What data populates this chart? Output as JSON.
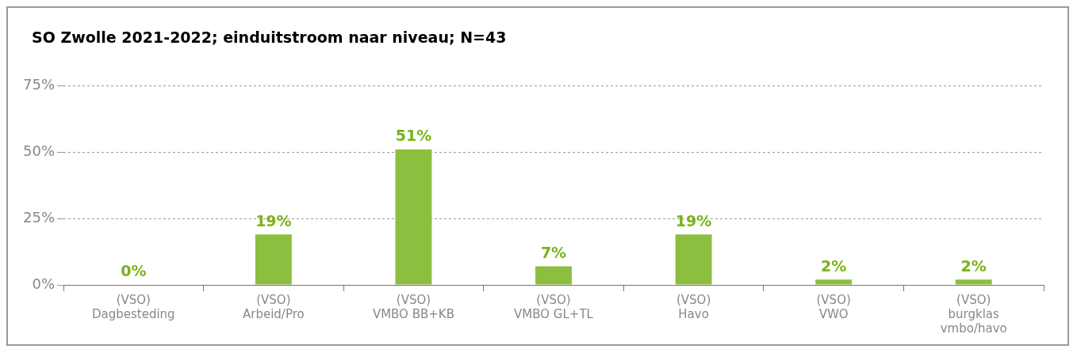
{
  "chart_data": {
    "type": "bar",
    "title": "SO Zwolle 2021-2022; einduitstroom naar niveau; N=43",
    "categories": [
      "(VSO)\nDagbesteding",
      "(VSO)\nArbeid/Pro",
      "(VSO)\nVMBO BB+KB",
      "(VSO)\nVMBO GL+TL",
      "(VSO)\nHavo",
      "(VSO)\nVWO",
      "(VSO)\nburgklas\nvmbo/havo"
    ],
    "values": [
      0,
      19,
      51,
      7,
      19,
      2,
      2
    ],
    "color": "#8cbf3f",
    "ylim": [
      0,
      75
    ],
    "yticks": [
      {
        "value": 0,
        "label": "0%"
      },
      {
        "value": 25,
        "label": "25%"
      },
      {
        "value": 50,
        "label": "50%"
      },
      {
        "value": 75,
        "label": "75%"
      }
    ],
    "grid": "y",
    "value_labels": [
      "0%",
      "19%",
      "51%",
      "7%",
      "19%",
      "2%",
      "2%"
    ],
    "legend": false
  }
}
